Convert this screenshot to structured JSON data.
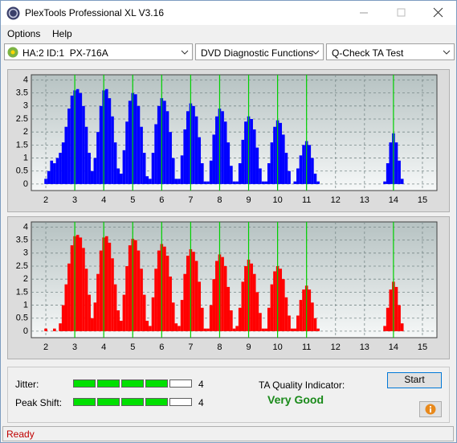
{
  "window": {
    "title": "PlexTools Professional XL V3.16"
  },
  "menu": [
    "Options",
    "Help"
  ],
  "toolbar": {
    "drive": "HA:2 ID:1  PX-716A",
    "function": "DVD Diagnostic Functions",
    "test": "Q-Check TA Test"
  },
  "chart_data": [
    {
      "type": "bar",
      "color": "#0000ff",
      "marker_color": "#00d000",
      "grid": true,
      "xlim": [
        1.5,
        15.5
      ],
      "ylim": [
        -0.25,
        4.2
      ],
      "xticks": [
        2,
        3,
        4,
        5,
        6,
        7,
        8,
        9,
        10,
        11,
        12,
        13,
        14,
        15
      ],
      "yticks": [
        0,
        0.5,
        1,
        1.5,
        2,
        2.5,
        3,
        3.5,
        4
      ],
      "markers": [
        3,
        4,
        5,
        6,
        7,
        8,
        9,
        10,
        11,
        14
      ],
      "x": [
        2,
        2.1,
        2.2,
        2.3,
        2.4,
        2.5,
        2.6,
        2.7,
        2.8,
        2.9,
        3,
        3.1,
        3.2,
        3.3,
        3.4,
        3.5,
        3.6,
        3.7,
        3.8,
        3.9,
        4,
        4.1,
        4.2,
        4.3,
        4.4,
        4.5,
        4.6,
        4.7,
        4.8,
        4.9,
        5,
        5.1,
        5.2,
        5.3,
        5.4,
        5.5,
        5.6,
        5.7,
        5.8,
        5.9,
        6,
        6.1,
        6.2,
        6.3,
        6.4,
        6.5,
        6.6,
        6.7,
        6.8,
        6.9,
        7,
        7.1,
        7.2,
        7.3,
        7.4,
        7.5,
        7.6,
        7.7,
        7.8,
        7.9,
        8,
        8.1,
        8.2,
        8.3,
        8.4,
        8.5,
        8.6,
        8.7,
        8.8,
        8.9,
        9,
        9.1,
        9.2,
        9.3,
        9.4,
        9.5,
        9.6,
        9.7,
        9.8,
        9.9,
        10,
        10.1,
        10.2,
        10.3,
        10.4,
        10.5,
        10.6,
        10.7,
        10.8,
        10.9,
        11,
        11.1,
        11.2,
        11.3,
        11.4,
        13.7,
        13.8,
        13.9,
        14,
        14.1,
        14.2,
        14.3
      ],
      "values": [
        0.2,
        0.5,
        0.9,
        0.8,
        1.0,
        1.2,
        1.6,
        2.2,
        2.9,
        3.4,
        3.6,
        3.65,
        3.5,
        3.0,
        2.2,
        1.2,
        0.5,
        1.0,
        2.0,
        3.0,
        3.6,
        3.65,
        3.3,
        2.6,
        1.6,
        0.6,
        0.4,
        1.3,
        2.4,
        3.2,
        3.5,
        3.45,
        3.0,
        2.2,
        1.2,
        0.3,
        0.2,
        1.2,
        2.3,
        3.0,
        3.3,
        3.2,
        2.8,
        2.0,
        1.0,
        0.2,
        0.2,
        1.1,
        2.1,
        2.8,
        3.1,
        3.0,
        2.6,
        1.8,
        0.8,
        0.1,
        0.1,
        0.9,
        1.9,
        2.6,
        2.9,
        2.8,
        2.4,
        1.6,
        0.7,
        0.1,
        0.1,
        0.8,
        1.7,
        2.4,
        2.6,
        2.5,
        2.1,
        1.4,
        0.6,
        0.1,
        0.1,
        0.8,
        1.6,
        2.2,
        2.45,
        2.35,
        1.9,
        1.2,
        0.5,
        0,
        0.1,
        0.6,
        1.1,
        1.5,
        1.65,
        1.5,
        1.0,
        0.4,
        0.1,
        0.1,
        0.8,
        1.6,
        1.95,
        1.6,
        0.9,
        0.2
      ]
    },
    {
      "type": "bar",
      "color": "#ff0000",
      "marker_color": "#00d000",
      "grid": true,
      "xlim": [
        1.5,
        15.5
      ],
      "ylim": [
        -0.25,
        4.2
      ],
      "xticks": [
        2,
        3,
        4,
        5,
        6,
        7,
        8,
        9,
        10,
        11,
        12,
        13,
        14,
        15
      ],
      "yticks": [
        0,
        0.5,
        1,
        1.5,
        2,
        2.5,
        3,
        3.5,
        4
      ],
      "markers": [
        3,
        4,
        5,
        6,
        7,
        8,
        9,
        10,
        11,
        14
      ],
      "x": [
        2,
        2.1,
        2.2,
        2.3,
        2.4,
        2.5,
        2.6,
        2.7,
        2.8,
        2.9,
        3,
        3.1,
        3.2,
        3.3,
        3.4,
        3.5,
        3.6,
        3.7,
        3.8,
        3.9,
        4,
        4.1,
        4.2,
        4.3,
        4.4,
        4.5,
        4.6,
        4.7,
        4.8,
        4.9,
        5,
        5.1,
        5.2,
        5.3,
        5.4,
        5.5,
        5.6,
        5.7,
        5.8,
        5.9,
        6,
        6.1,
        6.2,
        6.3,
        6.4,
        6.5,
        6.6,
        6.7,
        6.8,
        6.9,
        7,
        7.1,
        7.2,
        7.3,
        7.4,
        7.5,
        7.6,
        7.7,
        7.8,
        7.9,
        8,
        8.1,
        8.2,
        8.3,
        8.4,
        8.5,
        8.6,
        8.7,
        8.8,
        8.9,
        9,
        9.1,
        9.2,
        9.3,
        9.4,
        9.5,
        9.6,
        9.7,
        9.8,
        9.9,
        10,
        10.1,
        10.2,
        10.3,
        10.4,
        10.5,
        10.6,
        10.7,
        10.8,
        10.9,
        11,
        11.1,
        11.2,
        11.3,
        11.4,
        13.7,
        13.8,
        13.9,
        14,
        14.1,
        14.2,
        14.3
      ],
      "values": [
        0.1,
        0,
        0,
        0.1,
        0,
        0.3,
        1.0,
        1.8,
        2.6,
        3.3,
        3.65,
        3.7,
        3.6,
        3.2,
        2.4,
        1.4,
        0.5,
        1.1,
        2.2,
        3.1,
        3.6,
        3.65,
        3.4,
        2.8,
        1.8,
        0.8,
        0.4,
        1.4,
        2.5,
        3.3,
        3.55,
        3.5,
        3.1,
        2.4,
        1.4,
        0.4,
        0.2,
        1.3,
        2.4,
        3.1,
        3.35,
        3.25,
        2.9,
        2.1,
        1.1,
        0.3,
        0.2,
        1.2,
        2.2,
        2.9,
        3.15,
        3.05,
        2.7,
        1.9,
        0.9,
        0.1,
        0.1,
        1.0,
        2.0,
        2.7,
        2.95,
        2.85,
        2.5,
        1.7,
        0.8,
        0.1,
        0.2,
        0.9,
        1.9,
        2.5,
        2.75,
        2.6,
        2.2,
        1.5,
        0.7,
        0.1,
        0.1,
        0.9,
        1.8,
        2.3,
        2.5,
        2.4,
        2.0,
        1.3,
        0.6,
        0.1,
        0.1,
        0.6,
        1.2,
        1.6,
        1.75,
        1.6,
        1.1,
        0.5,
        0.1,
        0.2,
        0.9,
        1.6,
        1.9,
        1.7,
        1.0,
        0.3
      ]
    }
  ],
  "results": {
    "jitter_label": "Jitter:",
    "jitter": 4,
    "peak_shift_label": "Peak Shift:",
    "peak_shift": 4,
    "ta_label": "TA Quality Indicator:",
    "ta_value": "Very Good",
    "start": "Start"
  },
  "status": "Ready"
}
